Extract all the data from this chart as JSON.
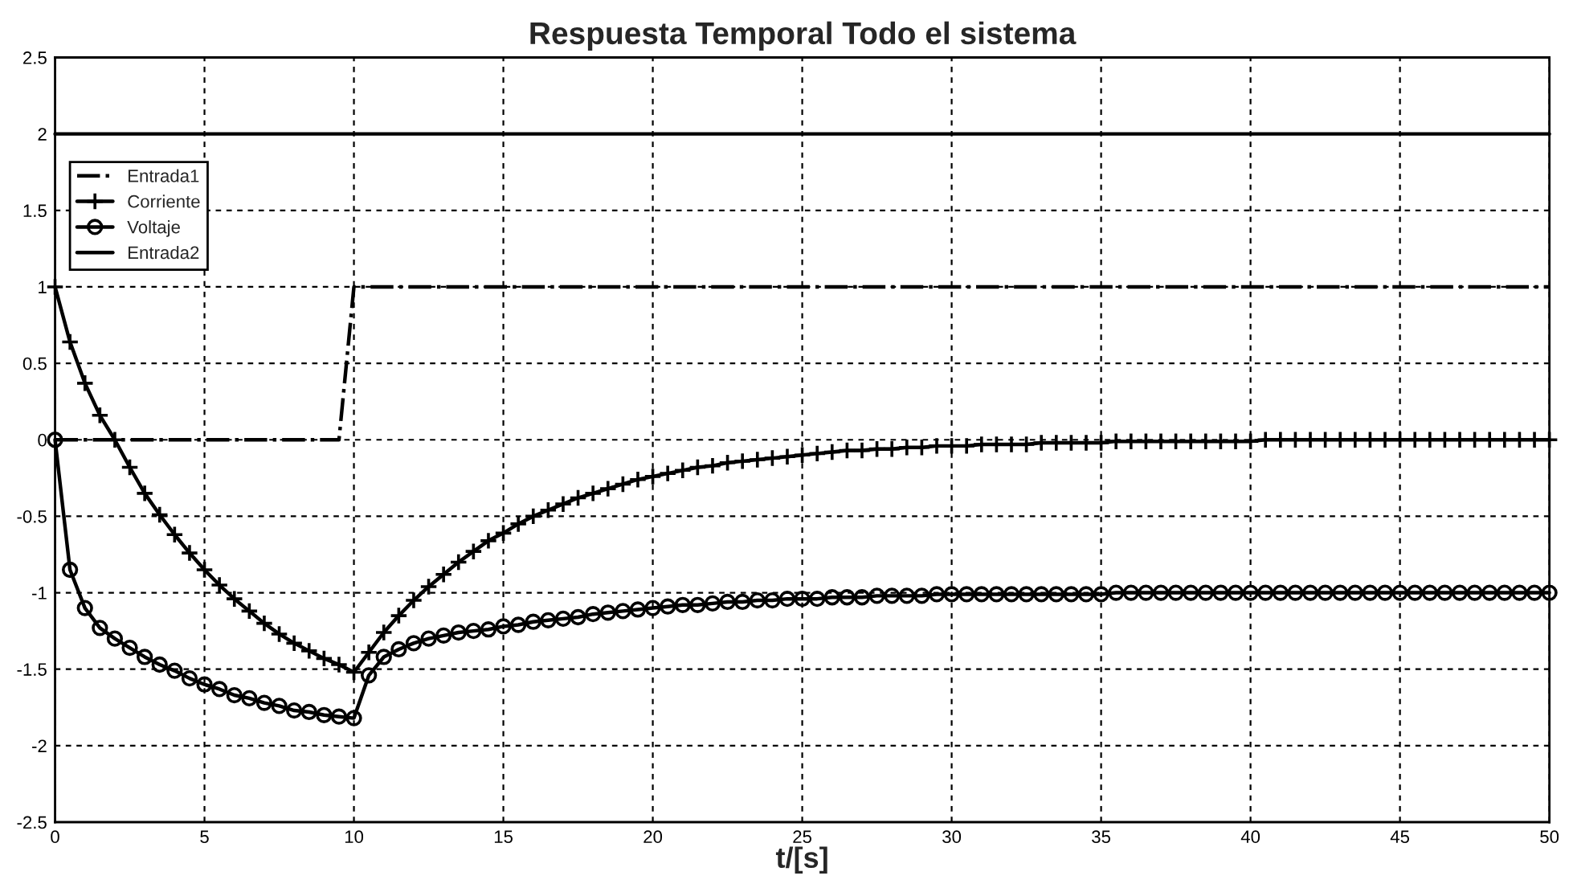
{
  "chart_data": {
    "type": "line",
    "title": "Respuesta Temporal Todo el sistema",
    "xlabel": "t/[s]",
    "xlim": [
      0,
      50
    ],
    "xticks": [
      0,
      5,
      10,
      15,
      20,
      25,
      30,
      35,
      40,
      45,
      50
    ],
    "ylim": [
      -2.5,
      2.5
    ],
    "yticks": [
      -2.5,
      -2,
      -1.5,
      -1,
      -0.5,
      0,
      0.5,
      1,
      1.5,
      2,
      2.5
    ],
    "grid": true,
    "legend": "top left",
    "series": [
      {
        "name": "Entrada1",
        "color": "#000000",
        "line_style": "dashdot",
        "marker": "none",
        "x": [
          0,
          9.5,
          10,
          50
        ],
        "values": [
          0,
          0,
          1,
          1
        ]
      },
      {
        "name": "Corriente",
        "color": "#000000",
        "line_style": "solid",
        "marker": "cross",
        "x": [
          0,
          0.5,
          1,
          1.5,
          2,
          2.5,
          3,
          3.5,
          4,
          4.5,
          5,
          5.5,
          6,
          6.5,
          7,
          7.5,
          8,
          8.5,
          9,
          9.5,
          10,
          10.5,
          11,
          11.5,
          12,
          12.5,
          13,
          13.5,
          14,
          14.5,
          15,
          15.5,
          16,
          16.5,
          17,
          17.5,
          18,
          18.5,
          19,
          19.5,
          20,
          20.5,
          21,
          21.5,
          22,
          22.5,
          23,
          23.5,
          24,
          24.5,
          25,
          25.5,
          26,
          26.5,
          27,
          27.5,
          28,
          28.5,
          29,
          29.5,
          30,
          30.5,
          31,
          31.5,
          32,
          32.5,
          33,
          33.5,
          34,
          34.5,
          35,
          35.5,
          36,
          36.5,
          37,
          37.5,
          38,
          38.5,
          39,
          39.5,
          40,
          40.5,
          41,
          41.5,
          42,
          42.5,
          43,
          43.5,
          44,
          44.5,
          45,
          45.5,
          46,
          46.5,
          47,
          47.5,
          48,
          48.5,
          49,
          49.5,
          50
        ],
        "values": [
          1.0,
          0.64,
          0.37,
          0.16,
          0.0,
          -0.18,
          -0.35,
          -0.49,
          -0.62,
          -0.74,
          -0.85,
          -0.95,
          -1.04,
          -1.12,
          -1.2,
          -1.27,
          -1.33,
          -1.38,
          -1.43,
          -1.47,
          -1.52,
          -1.39,
          -1.26,
          -1.15,
          -1.05,
          -0.96,
          -0.88,
          -0.8,
          -0.73,
          -0.66,
          -0.61,
          -0.55,
          -0.5,
          -0.46,
          -0.42,
          -0.38,
          -0.35,
          -0.32,
          -0.29,
          -0.26,
          -0.24,
          -0.22,
          -0.2,
          -0.18,
          -0.17,
          -0.15,
          -0.14,
          -0.13,
          -0.12,
          -0.11,
          -0.1,
          -0.09,
          -0.08,
          -0.07,
          -0.07,
          -0.06,
          -0.06,
          -0.05,
          -0.05,
          -0.04,
          -0.04,
          -0.04,
          -0.03,
          -0.03,
          -0.03,
          -0.03,
          -0.02,
          -0.02,
          -0.02,
          -0.02,
          -0.02,
          -0.01,
          -0.01,
          -0.01,
          -0.01,
          -0.01,
          -0.01,
          -0.01,
          -0.01,
          -0.01,
          -0.01,
          0,
          0,
          0,
          0,
          0,
          0,
          0,
          0,
          0,
          0,
          0,
          0,
          0,
          0,
          0,
          0,
          0,
          0,
          0,
          0
        ]
      },
      {
        "name": "Voltaje",
        "color": "#000000",
        "line_style": "solid",
        "marker": "circle",
        "x": [
          0,
          0.5,
          1,
          1.5,
          2,
          2.5,
          3,
          3.5,
          4,
          4.5,
          5,
          5.5,
          6,
          6.5,
          7,
          7.5,
          8,
          8.5,
          9,
          9.5,
          10,
          10.5,
          11,
          11.5,
          12,
          12.5,
          13,
          13.5,
          14,
          14.5,
          15,
          15.5,
          16,
          16.5,
          17,
          17.5,
          18,
          18.5,
          19,
          19.5,
          20,
          20.5,
          21,
          21.5,
          22,
          22.5,
          23,
          23.5,
          24,
          24.5,
          25,
          25.5,
          26,
          26.5,
          27,
          27.5,
          28,
          28.5,
          29,
          29.5,
          30,
          30.5,
          31,
          31.5,
          32,
          32.5,
          33,
          33.5,
          34,
          34.5,
          35,
          35.5,
          36,
          36.5,
          37,
          37.5,
          38,
          38.5,
          39,
          39.5,
          40,
          40.5,
          41,
          41.5,
          42,
          42.5,
          43,
          43.5,
          44,
          44.5,
          45,
          45.5,
          46,
          46.5,
          47,
          47.5,
          48,
          48.5,
          49,
          49.5,
          50
        ],
        "values": [
          0,
          -0.85,
          -1.1,
          -1.23,
          -1.3,
          -1.36,
          -1.42,
          -1.47,
          -1.51,
          -1.56,
          -1.6,
          -1.63,
          -1.67,
          -1.69,
          -1.72,
          -1.74,
          -1.77,
          -1.78,
          -1.8,
          -1.81,
          -1.82,
          -1.54,
          -1.42,
          -1.37,
          -1.33,
          -1.3,
          -1.28,
          -1.26,
          -1.25,
          -1.24,
          -1.22,
          -1.21,
          -1.19,
          -1.18,
          -1.17,
          -1.16,
          -1.14,
          -1.13,
          -1.12,
          -1.11,
          -1.1,
          -1.09,
          -1.08,
          -1.08,
          -1.07,
          -1.06,
          -1.06,
          -1.05,
          -1.05,
          -1.04,
          -1.04,
          -1.04,
          -1.03,
          -1.03,
          -1.03,
          -1.02,
          -1.02,
          -1.02,
          -1.02,
          -1.01,
          -1.01,
          -1.01,
          -1.01,
          -1.01,
          -1.01,
          -1.01,
          -1.01,
          -1.01,
          -1.01,
          -1.01,
          -1.01,
          -1,
          -1,
          -1,
          -1,
          -1,
          -1,
          -1,
          -1,
          -1,
          -1,
          -1,
          -1,
          -1,
          -1,
          -1,
          -1,
          -1,
          -1,
          -1,
          -1,
          -1,
          -1,
          -1,
          -1,
          -1,
          -1,
          -1,
          -1,
          -1,
          -1
        ]
      },
      {
        "name": "Entrada2",
        "color": "#000000",
        "line_style": "solid",
        "marker": "none",
        "x": [
          0,
          50
        ],
        "values": [
          2,
          2
        ]
      }
    ]
  }
}
